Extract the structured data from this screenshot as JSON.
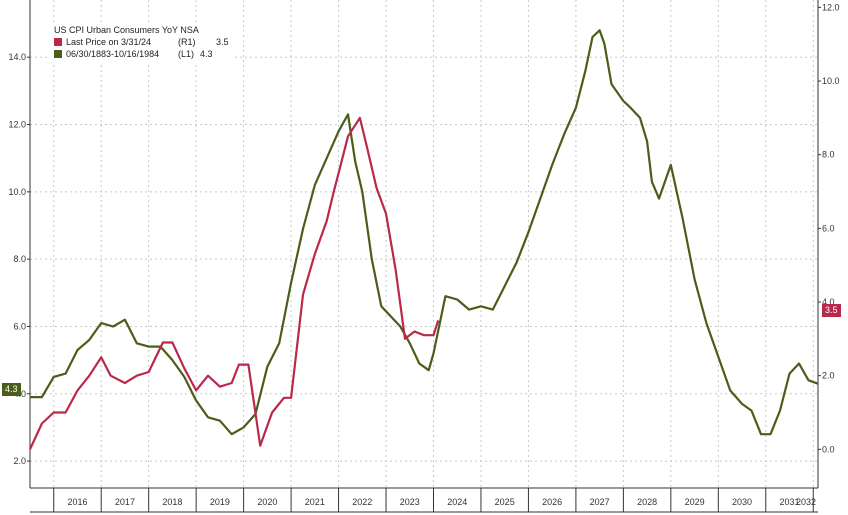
{
  "chart_data": {
    "type": "line",
    "title": "US CPI Urban Consumers YoY NSA",
    "series": [
      {
        "name": "Last Price on 3/31/24",
        "axis": "right",
        "legend_tag": "(R1)",
        "legend_value": "3.5",
        "color": "#b8294a",
        "x": [
          2015.5,
          2015.75,
          2016.0,
          2016.25,
          2016.5,
          2016.75,
          2017.0,
          2017.2,
          2017.5,
          2017.75,
          2018.0,
          2018.3,
          2018.5,
          2018.75,
          2019.0,
          2019.25,
          2019.5,
          2019.75,
          2019.9,
          2020.1,
          2020.35,
          2020.6,
          2020.85,
          2021.0,
          2021.25,
          2021.5,
          2021.75,
          2021.9,
          2022.0,
          2022.2,
          2022.45,
          2022.6,
          2022.8,
          2023.0,
          2023.2,
          2023.4,
          2023.6,
          2023.8,
          2024.0,
          2024.1
        ],
        "y": [
          0.0,
          0.7,
          1.0,
          1.0,
          1.6,
          2.0,
          2.5,
          2.0,
          1.8,
          2.0,
          2.1,
          2.9,
          2.9,
          2.2,
          1.6,
          2.0,
          1.7,
          1.8,
          2.3,
          2.3,
          0.1,
          1.0,
          1.4,
          1.4,
          4.2,
          5.3,
          6.2,
          7.0,
          7.5,
          8.5,
          9.0,
          8.2,
          7.1,
          6.4,
          4.9,
          3.0,
          3.2,
          3.1,
          3.1,
          3.5
        ]
      },
      {
        "name": "06/30/1883-10/16/1984",
        "axis": "left",
        "legend_tag": "(L1)",
        "legend_value": "4.3",
        "color": "#4a5e1a",
        "x": [
          2015.5,
          2015.75,
          2016.0,
          2016.25,
          2016.5,
          2016.75,
          2017.0,
          2017.25,
          2017.5,
          2017.75,
          2018.0,
          2018.25,
          2018.5,
          2018.75,
          2019.0,
          2019.25,
          2019.5,
          2019.75,
          2020.0,
          2020.25,
          2020.5,
          2020.75,
          2021.0,
          2021.25,
          2021.5,
          2021.75,
          2022.0,
          2022.2,
          2022.35,
          2022.5,
          2022.7,
          2022.9,
          2023.1,
          2023.3,
          2023.5,
          2023.7,
          2023.9,
          2024.0,
          2024.25,
          2024.5,
          2024.75,
          2025.0,
          2025.25,
          2025.5,
          2025.75,
          2026.0,
          2026.25,
          2026.5,
          2026.75,
          2027.0,
          2027.2,
          2027.35,
          2027.5,
          2027.6,
          2027.75,
          2028.0,
          2028.15,
          2028.35,
          2028.5,
          2028.6,
          2028.75,
          2029.0,
          2029.25,
          2029.5,
          2029.75,
          2030.0,
          2030.25,
          2030.5,
          2030.7,
          2030.9,
          2031.1,
          2031.3,
          2031.5,
          2031.7,
          2031.9,
          2032.1
        ],
        "y": [
          3.9,
          3.9,
          4.5,
          4.6,
          5.3,
          5.6,
          6.1,
          6.0,
          6.2,
          5.5,
          5.4,
          5.4,
          5.0,
          4.5,
          3.8,
          3.3,
          3.2,
          2.8,
          3.0,
          3.4,
          4.8,
          5.5,
          7.3,
          8.9,
          10.2,
          11.0,
          11.8,
          12.3,
          10.9,
          10.0,
          8.0,
          6.6,
          6.3,
          6.0,
          5.5,
          4.9,
          4.7,
          5.2,
          6.9,
          6.8,
          6.5,
          6.6,
          6.5,
          7.2,
          7.9,
          8.8,
          9.8,
          10.8,
          11.7,
          12.5,
          13.6,
          14.6,
          14.8,
          14.4,
          13.2,
          12.7,
          12.5,
          12.2,
          11.5,
          10.3,
          9.8,
          10.8,
          9.2,
          7.4,
          6.1,
          5.1,
          4.1,
          3.7,
          3.5,
          2.8,
          2.8,
          3.5,
          4.6,
          4.9,
          4.4,
          4.3
        ]
      }
    ],
    "x_ticks": [
      "2016",
      "2017",
      "2018",
      "2019",
      "2020",
      "2021",
      "2022",
      "2023",
      "2024",
      "2025",
      "2026",
      "2027",
      "2028",
      "2029",
      "2030",
      "2031",
      "2032"
    ],
    "xlim": [
      2015.5,
      2032.1
    ],
    "y_left": {
      "ticks": [
        "2.0",
        "4.0",
        "6.0",
        "8.0",
        "10.0",
        "12.0",
        "14.0"
      ],
      "ylim": [
        1.2,
        15.7
      ]
    },
    "y_right": {
      "ticks": [
        "0.0",
        "2.0",
        "4.0",
        "6.0",
        "8.0",
        "10.0",
        "12.0"
      ],
      "ylim": [
        -1.05,
        12.2
      ]
    },
    "badges": {
      "left": "4.3",
      "right": "3.5"
    },
    "grid": true,
    "legend_position": "top-left"
  }
}
